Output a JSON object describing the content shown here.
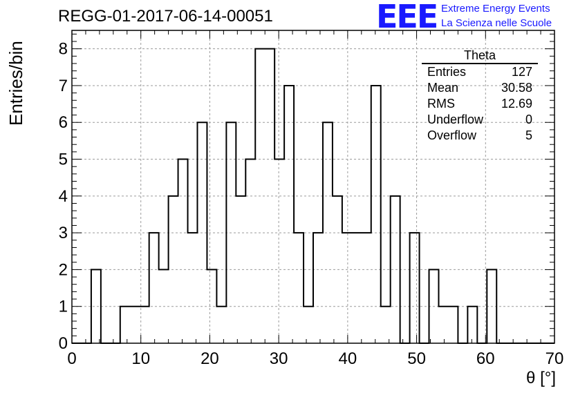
{
  "chart_data": {
    "type": "bar",
    "title": "REGG-01-2017-06-14-00051",
    "xlabel": "θ [°]",
    "ylabel": "Entries/bin",
    "xlim": [
      0,
      70
    ],
    "ylim": [
      0,
      8.5
    ],
    "bin_width": 1.4,
    "x_ticks": [
      "0",
      "10",
      "20",
      "30",
      "40",
      "50",
      "60",
      "70"
    ],
    "y_ticks": [
      "0",
      "1",
      "2",
      "3",
      "4",
      "5",
      "6",
      "7",
      "8"
    ],
    "grid": true,
    "values": [
      0,
      0,
      2,
      0,
      0,
      1,
      1,
      1,
      3,
      2,
      4,
      5,
      3,
      6,
      2,
      1,
      6,
      4,
      5,
      8,
      8,
      5,
      7,
      3,
      1,
      3,
      6,
      4,
      3,
      3,
      3,
      7,
      1,
      4,
      0,
      3,
      0,
      2,
      1,
      1,
      0,
      1,
      0,
      2,
      0,
      0,
      0,
      0,
      0,
      0
    ],
    "stats": {
      "name": "Theta",
      "rows": [
        {
          "label": "Entries",
          "value": "127"
        },
        {
          "label": "Mean",
          "value": "30.58"
        },
        {
          "label": "RMS",
          "value": "12.69"
        },
        {
          "label": "Underflow",
          "value": "0"
        },
        {
          "label": "Overflow",
          "value": "5"
        }
      ]
    }
  },
  "logo": {
    "mark": "EEE",
    "line1": "Extreme Energy Events",
    "line2": "La Scienza nelle Scuole",
    "color": "#1a1aff"
  }
}
